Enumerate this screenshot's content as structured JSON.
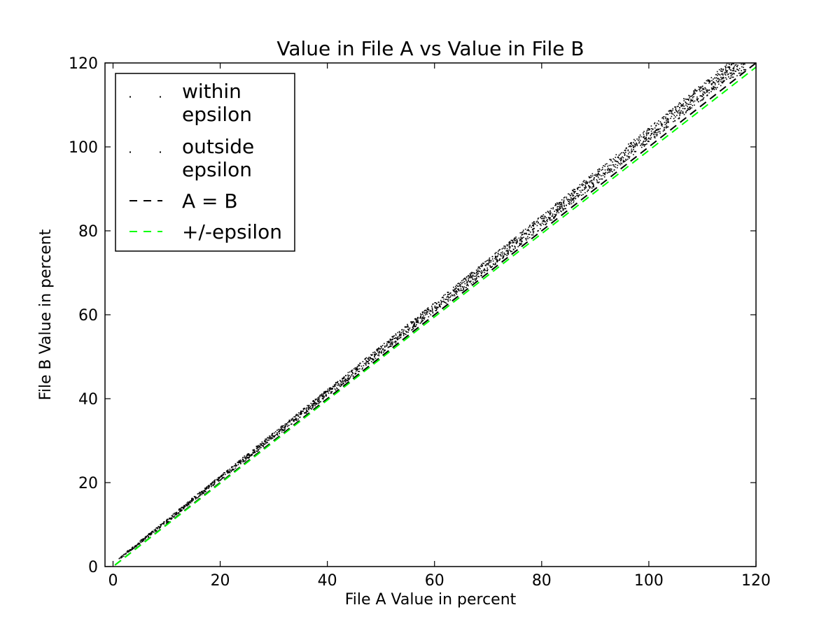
{
  "chart_data": {
    "type": "scatter",
    "title": "Value in File A vs Value in File B",
    "xlabel": "File A Value in percent",
    "ylabel": "File B Value in percent",
    "xlim": [
      -1.5,
      120
    ],
    "ylim": [
      0,
      120
    ],
    "xticks": [
      0,
      20,
      40,
      60,
      80,
      100,
      120
    ],
    "yticks": [
      0,
      20,
      40,
      60,
      80,
      100,
      120
    ],
    "xtick_labels": [
      "0",
      "20",
      "40",
      "60",
      "80",
      "100",
      "120"
    ],
    "ytick_labels": [
      "0",
      "20",
      "40",
      "60",
      "80",
      "100",
      "120"
    ],
    "grid": false,
    "legend_position": "top-left",
    "series": [
      {
        "name": "within epsilon",
        "kind": "points",
        "color": "#000000",
        "description_points": "dense band just above A = B, spreading wider toward high values",
        "x": [
          1,
          5,
          10,
          15,
          20,
          25,
          30,
          35,
          40,
          45,
          50,
          55,
          60,
          65,
          70,
          75,
          80,
          85,
          90,
          95,
          100,
          105,
          110,
          115,
          118
        ],
        "y": [
          2,
          6,
          11,
          16.3,
          21.3,
          26.4,
          31.5,
          36.5,
          41.6,
          46.7,
          51.8,
          56.9,
          62,
          67,
          72.2,
          77.3,
          82.4,
          87.6,
          92.7,
          97.9,
          103,
          108.2,
          113.4,
          118.5,
          120
        ]
      },
      {
        "name": "outside epsilon",
        "kind": "points",
        "color": "#000000",
        "x": [],
        "y": []
      },
      {
        "name": "A = B",
        "kind": "line",
        "style": "dashed",
        "color": "#000000",
        "x": [
          -1.5,
          120
        ],
        "y": [
          -1.5,
          120
        ]
      },
      {
        "name": "+/-epsilon",
        "kind": "line",
        "style": "dashed",
        "color": "#00ff00",
        "x": [
          -1.5,
          120
        ],
        "y": [
          -1.5,
          119
        ]
      }
    ],
    "legend": [
      {
        "label_line1": "within",
        "label_line2": "epsilon",
        "marker": "points"
      },
      {
        "label_line1": "outside",
        "label_line2": "epsilon",
        "marker": "points"
      },
      {
        "label_line1": "A = B",
        "label_line2": "",
        "marker": "dashed-black"
      },
      {
        "label_line1": "+/-epsilon",
        "label_line2": "",
        "marker": "dashed-green"
      }
    ]
  }
}
